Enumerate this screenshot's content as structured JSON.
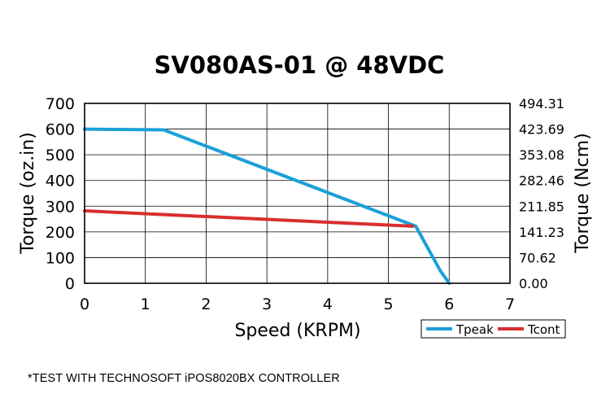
{
  "chart_data": {
    "type": "line",
    "title": "SV080AS-01 @ 48VDC",
    "xlabel": "Speed (KRPM)",
    "ylabel": "Torque (oz.in)",
    "ylabel_right": "Torque (Ncm)",
    "xlim": [
      0,
      7
    ],
    "ylim": [
      0,
      700
    ],
    "x_ticks": [
      "0",
      "1",
      "2",
      "3",
      "4",
      "5",
      "6",
      "7"
    ],
    "y_ticks": [
      "0",
      "100",
      "200",
      "300",
      "400",
      "500",
      "600",
      "700"
    ],
    "y_right_ticks": [
      "0.00",
      "70.62",
      "141.23",
      "211.85",
      "282.46",
      "353.08",
      "423.69",
      "494.31"
    ],
    "grid": true,
    "legend_position": "bottom-right",
    "series": [
      {
        "name": "Tpeak",
        "color": "#1ba1d8",
        "points": [
          [
            0,
            600
          ],
          [
            1.3,
            597
          ],
          [
            5.45,
            222
          ],
          [
            5.85,
            50
          ],
          [
            6.0,
            0
          ]
        ]
      },
      {
        "name": "Tcont",
        "color": "#d92e2e",
        "points": [
          [
            0,
            282
          ],
          [
            5.4,
            222
          ]
        ]
      }
    ]
  },
  "footnote": "*TEST WITH TECHNOSOFT iPOS8020BX CONTROLLER"
}
